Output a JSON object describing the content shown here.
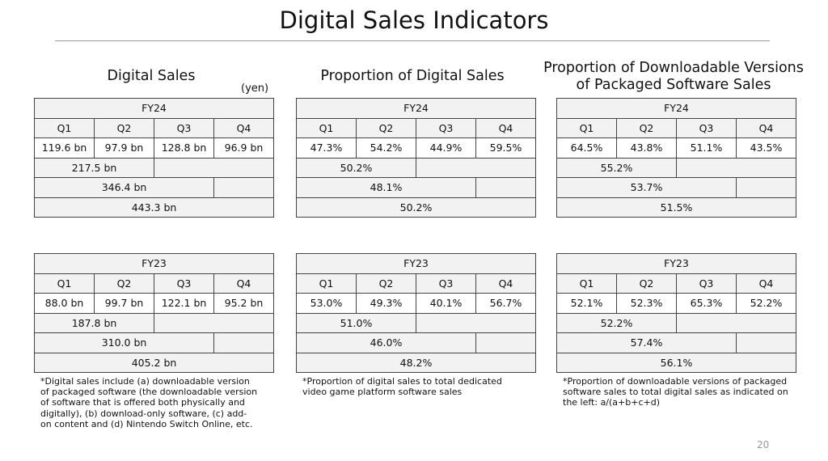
{
  "title": "Digital Sales Indicators",
  "page_number": "20",
  "columns": [
    {
      "heading": [
        "Digital Sales"
      ],
      "unit": "(yen)",
      "tables": [
        {
          "fy": "FY24",
          "quarters": [
            "Q1",
            "Q2",
            "Q3",
            "Q4"
          ],
          "values": [
            "119.6 bn",
            "97.9 bn",
            "128.8 bn",
            "96.9 bn"
          ],
          "first_half": "217.5 bn",
          "three_quarters": "346.4 bn",
          "full_year": "443.3 bn"
        },
        {
          "fy": "FY23",
          "quarters": [
            "Q1",
            "Q2",
            "Q3",
            "Q4"
          ],
          "values": [
            "88.0 bn",
            "99.7 bn",
            "122.1 bn",
            "95.2 bn"
          ],
          "first_half": "187.8 bn",
          "three_quarters": "310.0 bn",
          "full_year": "405.2 bn"
        }
      ],
      "note": [
        "*Digital sales include (a) downloadable version",
        "of packaged software (the downloadable version",
        "of software that is offered both physically and",
        "digitally), (b) download-only software, (c) add-",
        "on content and (d) Nintendo Switch Online, etc."
      ]
    },
    {
      "heading": [
        "Proportion of Digital Sales"
      ],
      "tables": [
        {
          "fy": "FY24",
          "quarters": [
            "Q1",
            "Q2",
            "Q3",
            "Q4"
          ],
          "values": [
            "47.3%",
            "54.2%",
            "44.9%",
            "59.5%"
          ],
          "first_half": "50.2%",
          "three_quarters": "48.1%",
          "full_year": "50.2%"
        },
        {
          "fy": "FY23",
          "quarters": [
            "Q1",
            "Q2",
            "Q3",
            "Q4"
          ],
          "values": [
            "53.0%",
            "49.3%",
            "40.1%",
            "56.7%"
          ],
          "first_half": "51.0%",
          "three_quarters": "46.0%",
          "full_year": "48.2%"
        }
      ],
      "note": [
        "*Proportion of digital sales to total dedicated",
        "video game platform software sales"
      ]
    },
    {
      "heading": [
        "Proportion of Downloadable Versions",
        "of Packaged Software Sales"
      ],
      "tables": [
        {
          "fy": "FY24",
          "quarters": [
            "Q1",
            "Q2",
            "Q3",
            "Q4"
          ],
          "values": [
            "64.5%",
            "43.8%",
            "51.1%",
            "43.5%"
          ],
          "first_half": "55.2%",
          "three_quarters": "53.7%",
          "full_year": "51.5%"
        },
        {
          "fy": "FY23",
          "quarters": [
            "Q1",
            "Q2",
            "Q3",
            "Q4"
          ],
          "values": [
            "52.1%",
            "52.3%",
            "65.3%",
            "52.2%"
          ],
          "first_half": "52.2%",
          "three_quarters": "57.4%",
          "full_year": "56.1%"
        }
      ],
      "note": [
        "*Proportion of downloadable versions of packaged",
        "software sales to total digital sales as indicated on",
        "the left: a/(a+b+c+d)"
      ]
    }
  ]
}
